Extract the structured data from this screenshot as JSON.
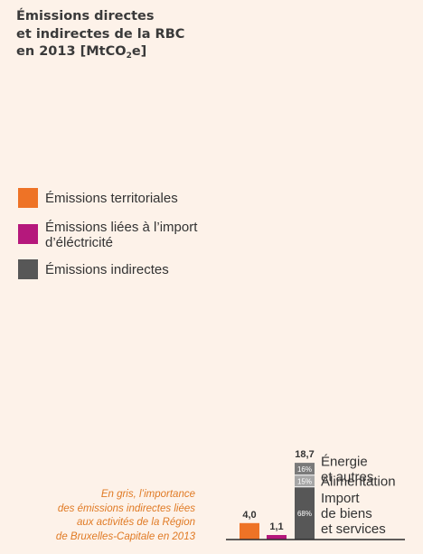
{
  "title": {
    "line1": "Émissions directes",
    "line2": "et indirectes de la RBC",
    "line3_prefix": "en 2013 [MtCO",
    "line3_sub": "2",
    "line3_suffix": "e]"
  },
  "legend": [
    {
      "label_lines": [
        "Émissions territoriales"
      ],
      "color": "#ee7326"
    },
    {
      "label_lines": [
        "Émissions liées à l’import",
        "d’éléctricité"
      ],
      "color": "#b5187c"
    },
    {
      "label_lines": [
        "Émissions indirectes"
      ],
      "color": "#575757"
    }
  ],
  "note": [
    "En gris, l’importance",
    "des émissions indirectes liées",
    "aux activités de la Région",
    "de Bruxelles-Capitale en 2013"
  ],
  "chart_data": {
    "type": "bar",
    "title": "Émissions directes et indirectes de la RBC en 2013 [MtCO2e]",
    "unit": "MtCO2e",
    "bars": [
      {
        "category": "Émissions territoriales",
        "value": 4.0,
        "label": "4,0",
        "color": "#ee7326"
      },
      {
        "category": "Émissions liées à l’import d’éléctricité",
        "value": 1.1,
        "label": "1,1",
        "color": "#b5187c"
      },
      {
        "category": "Émissions indirectes",
        "value": 18.7,
        "label": "18,7",
        "stacked": true,
        "segments": [
          {
            "name": "Import de biens et services",
            "name_lines": [
              "Import",
              "de biens",
              "et services"
            ],
            "share_percent": 68,
            "share_label": "68%",
            "color": "#575757"
          },
          {
            "name": "Alimentation",
            "name_lines": [
              "Alimentation"
            ],
            "share_percent": 15,
            "share_label": "15%",
            "color": "#a6a6a6"
          },
          {
            "name": "Énergie et autres",
            "name_lines": [
              "Énergie",
              "et autres"
            ],
            "share_percent": 16,
            "share_label": "16%",
            "color": "#7a7a7a"
          }
        ]
      }
    ]
  }
}
